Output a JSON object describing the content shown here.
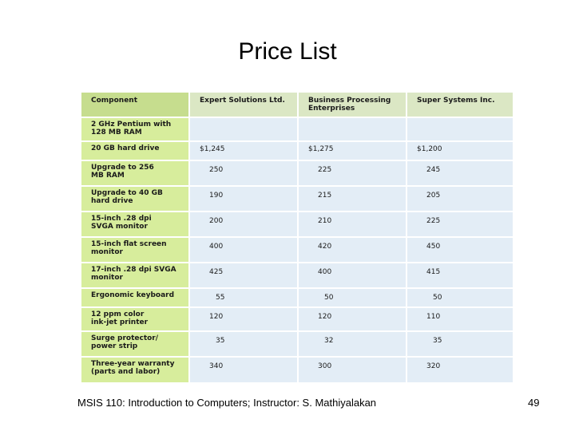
{
  "slide": {
    "title": "Price List",
    "footer": "MSIS 110:  Introduction to Computers;  Instructor: S. Mathiyalakan",
    "page_number": "49"
  },
  "table": {
    "headers": [
      "Component",
      "Expert Solutions Ltd.",
      "Business Processing\nEnterprises",
      "Super Systems Inc."
    ],
    "rows": [
      [
        "2 GHz Pentium with\n128 MB RAM",
        "",
        "",
        ""
      ],
      [
        "20 GB hard drive",
        "$1,245",
        "$1,275",
        "$1,200"
      ],
      [
        "Upgrade to 256\nMB RAM",
        "250",
        "225",
        "245"
      ],
      [
        "Upgrade to 40 GB\nhard drive",
        "190",
        "215",
        "205"
      ],
      [
        "15-inch .28 dpi\nSVGA monitor",
        "200",
        "210",
        "225"
      ],
      [
        "15-inch flat screen\nmonitor",
        "400",
        "420",
        "450"
      ],
      [
        "17-inch .28 dpi SVGA\nmonitor",
        "425",
        "400",
        "415"
      ],
      [
        "Ergonomic keyboard",
        "55",
        "50",
        "50"
      ],
      [
        "12 ppm color\nink-jet printer",
        "120",
        "120",
        "110"
      ],
      [
        "Surge protector/\npower strip",
        "35",
        "32",
        "35"
      ],
      [
        "Three-year warranty\n(parts and labor)",
        "340",
        "300",
        "320"
      ]
    ]
  }
}
